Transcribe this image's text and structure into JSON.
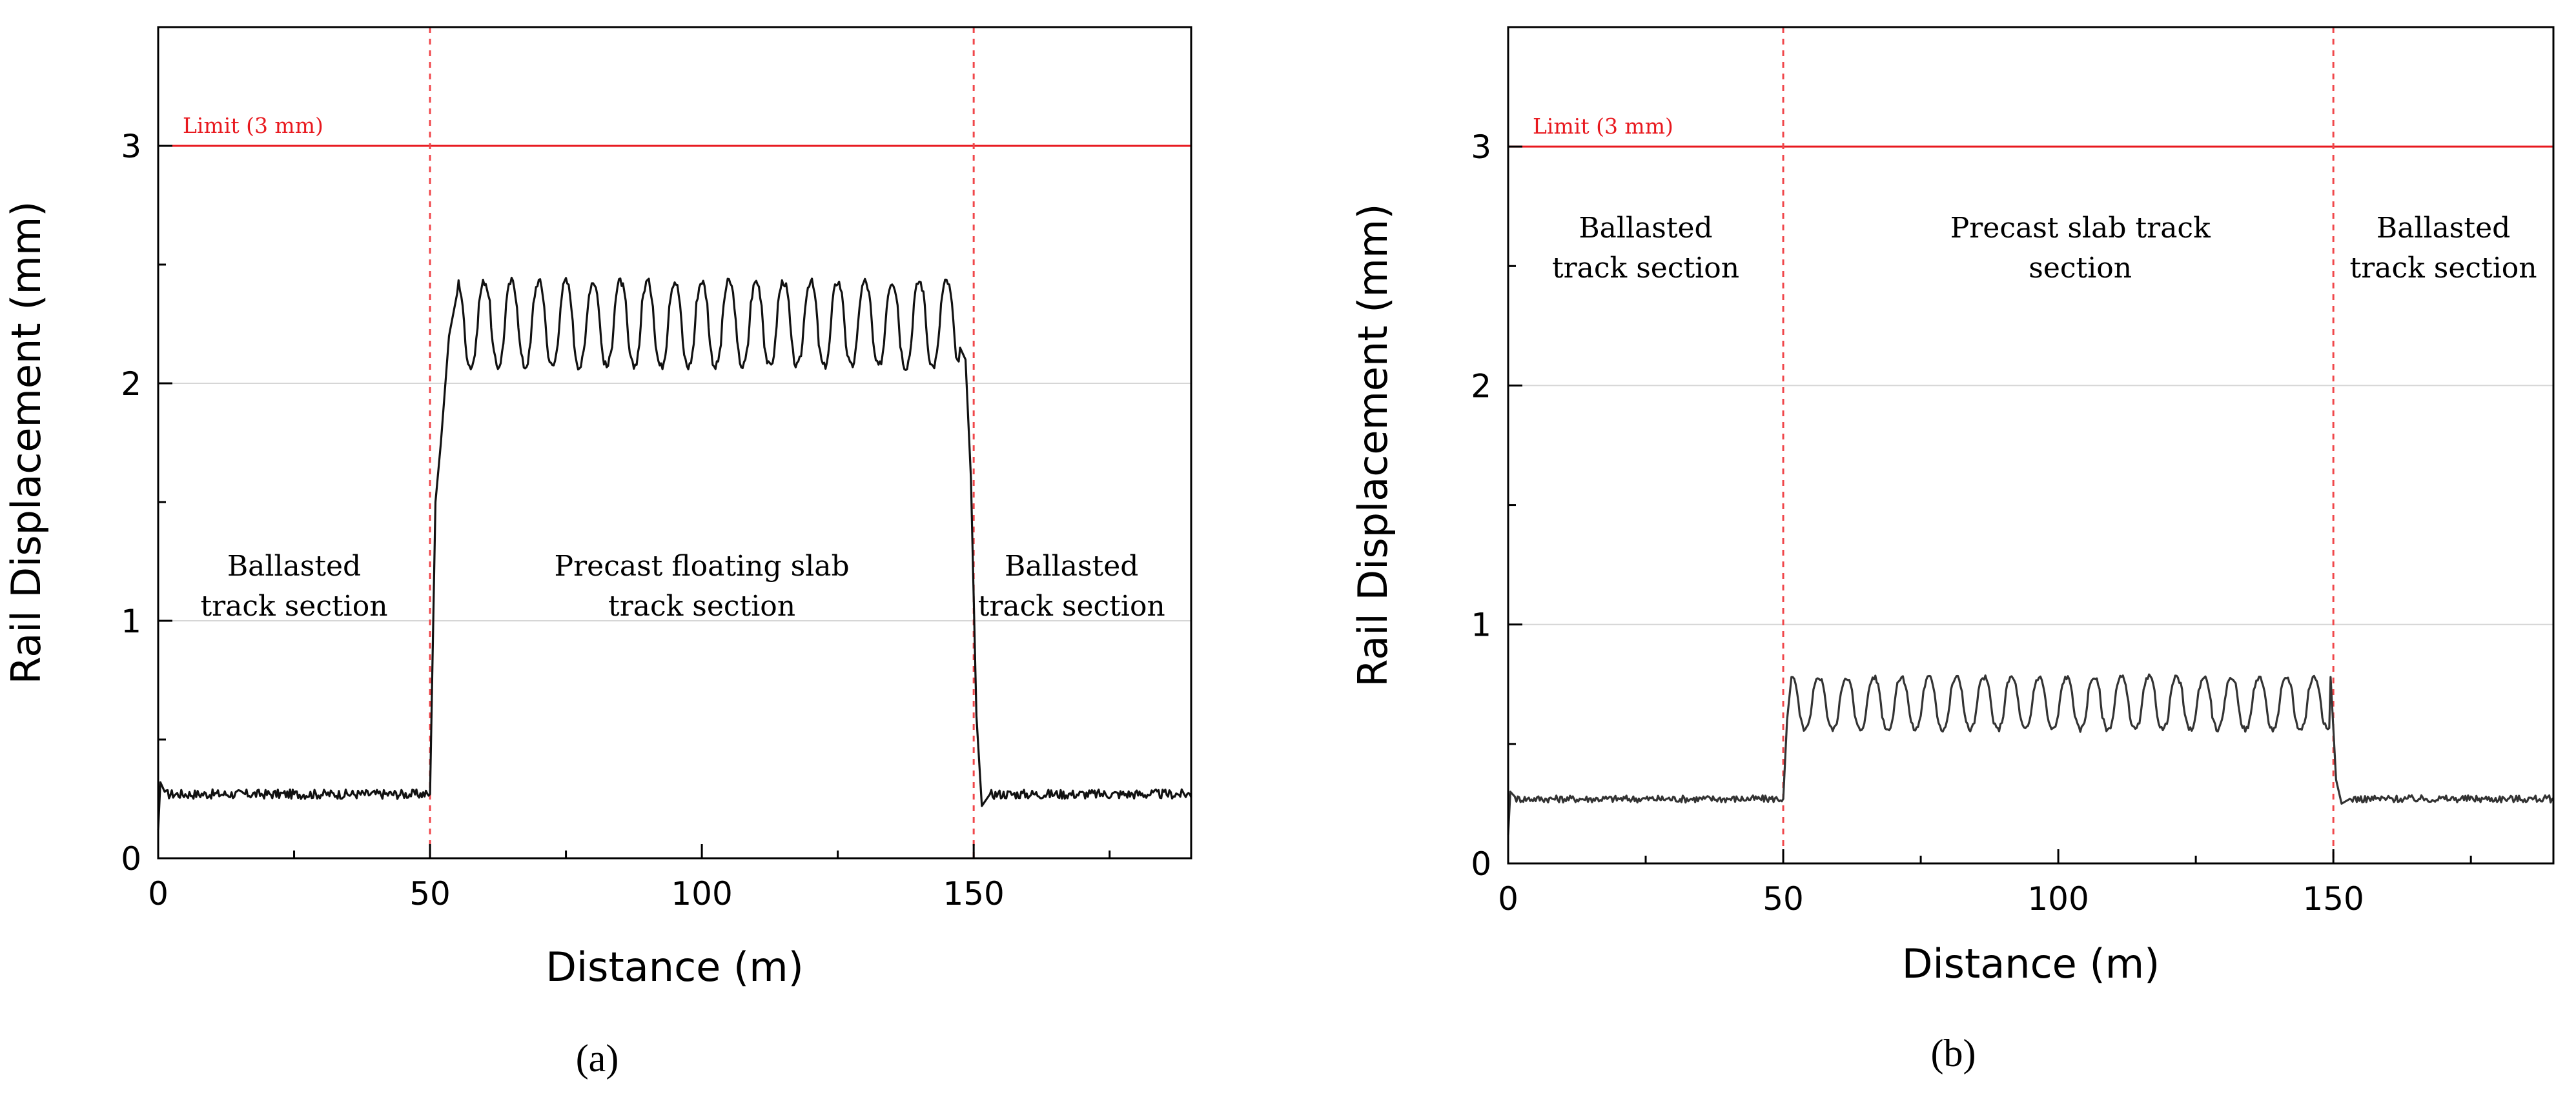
{
  "chart_data": [
    {
      "type": "line",
      "id": "a",
      "caption": "(a)",
      "xlabel": "Distance (m)",
      "ylabel": "Rail Displacement (mm)",
      "xlim": [
        0,
        190
      ],
      "ylim": [
        0,
        3.5
      ],
      "xticks": [
        0,
        50,
        100,
        150
      ],
      "xtick_labels": [
        "0",
        "50",
        "100",
        "150"
      ],
      "yticks": [
        0,
        1,
        2,
        3
      ],
      "ytick_labels": [
        "0",
        "1",
        "2",
        "3"
      ],
      "grid": "horizontal",
      "limit": {
        "value": 3,
        "label": "Limit (3 mm)",
        "color": "#e8191f"
      },
      "boundaries": [
        50,
        150
      ],
      "regions": [
        {
          "lines": [
            "Ballasted",
            "track section"
          ],
          "x_center": 25,
          "y_top": 1.19
        },
        {
          "lines": [
            "Precast floating slab",
            "track section"
          ],
          "x_center": 100,
          "y_top": 1.19
        },
        {
          "lines": [
            "Ballasted",
            "track section"
          ],
          "x_center": 168,
          "y_top": 1.19
        }
      ],
      "series": {
        "name": "Rail displacement",
        "color": "#111111",
        "ballasted_level": 0.27,
        "ballasted_noise": 0.02,
        "start_spike": 0.32,
        "slab_mean": 2.25,
        "slab_amplitude": 0.18,
        "slab_period_m": 5,
        "transition_in": [
          [
            50,
            0.27
          ],
          [
            51,
            1.5
          ],
          [
            52,
            1.75
          ],
          [
            53.5,
            2.2
          ],
          [
            55,
            2.38
          ]
        ],
        "transition_out": [
          [
            147.5,
            2.15
          ],
          [
            148.5,
            2.1
          ],
          [
            149.5,
            1.6
          ],
          [
            150.5,
            0.6
          ],
          [
            151.5,
            0.22
          ],
          [
            153,
            0.27
          ]
        ],
        "min_y_reference": 2.05,
        "max_y_reference": 2.45
      }
    },
    {
      "type": "line",
      "id": "b",
      "caption": "(b)",
      "xlabel": "Distance (m)",
      "ylabel": "Rail Displacement (mm)",
      "xlim": [
        0,
        190
      ],
      "ylim": [
        0,
        3.5
      ],
      "xticks": [
        0,
        50,
        100,
        150
      ],
      "xtick_labels": [
        "0",
        "50",
        "100",
        "150"
      ],
      "yticks": [
        0,
        1,
        2,
        3
      ],
      "ytick_labels": [
        "0",
        "1",
        "2",
        "3"
      ],
      "grid": "horizontal",
      "limit": {
        "value": 3,
        "label": "Limit (3 mm)",
        "color": "#e8191f"
      },
      "boundaries": [
        50,
        150
      ],
      "regions": [
        {
          "lines": [
            "Ballasted",
            "track section"
          ],
          "x_center": 25,
          "y_top": 2.62
        },
        {
          "lines": [
            "Precast slab track",
            "section"
          ],
          "x_center": 104,
          "y_top": 2.62
        },
        {
          "lines": [
            "Ballasted",
            "track section"
          ],
          "x_center": 170,
          "y_top": 2.62
        }
      ],
      "series": {
        "name": "Rail displacement",
        "color": "#333333",
        "ballasted_level": 0.27,
        "ballasted_noise": 0.015,
        "start_spike": 0.3,
        "slab_mean": 0.67,
        "slab_amplitude": 0.11,
        "slab_period_m": 5,
        "transition_in": [
          [
            50,
            0.27
          ],
          [
            50.7,
            0.6
          ],
          [
            51.5,
            0.78
          ]
        ],
        "transition_out": [
          [
            149.5,
            0.78
          ],
          [
            150.5,
            0.35
          ],
          [
            151.5,
            0.25
          ],
          [
            153,
            0.27
          ]
        ],
        "min_y_reference": 0.57,
        "max_y_reference": 0.79
      }
    }
  ]
}
